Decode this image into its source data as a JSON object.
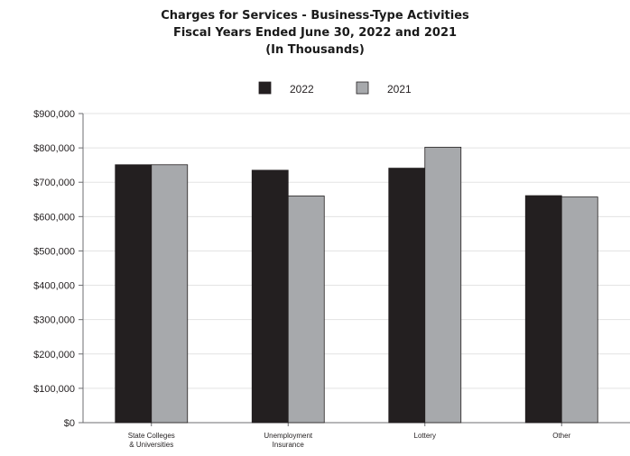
{
  "chart_data": {
    "type": "bar",
    "title": [
      "Charges for Services - Business-Type Activities",
      "Fiscal Years Ended June 30, 2022 and 2021",
      "(In Thousands)"
    ],
    "categories": [
      [
        "State Colleges",
        "& Universities"
      ],
      [
        "Unemployment",
        "Insurance"
      ],
      [
        "Lottery"
      ],
      [
        "Other"
      ]
    ],
    "series": [
      {
        "name": "2022",
        "values": [
          751000,
          735000,
          741000,
          661000
        ],
        "color": "#231f20"
      },
      {
        "name": "2021",
        "values": [
          751000,
          660000,
          802000,
          657000
        ],
        "color": "#a7a9ac"
      }
    ],
    "y_ticks": [
      "$0",
      "$100,000",
      "$200,000",
      "$300,000",
      "$400,000",
      "$500,000",
      "$600,000",
      "$700,000",
      "$800,000",
      "$900,000"
    ],
    "ylim": [
      0,
      900000
    ],
    "ytick_step": 100000,
    "xlabel": "",
    "ylabel": "",
    "grid": true,
    "legend_position": "top-center"
  }
}
